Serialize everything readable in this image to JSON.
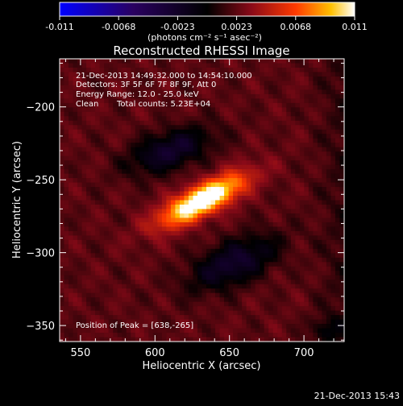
{
  "title": "Reconstructed RHESSI Image",
  "colorbar": {
    "ticks": [
      "-0.011",
      "-0.0068",
      "-0.0023",
      "0.0023",
      "0.0068",
      "0.011"
    ],
    "units": "(photons cm⁻² s⁻¹ asec⁻²)",
    "range": [
      -0.011,
      0.011
    ]
  },
  "info": {
    "time_range": "21-Dec-2013 14:49:32.000 to 14:54:10.000",
    "detectors": "Detectors: 3F 5F 6F 7F 8F 9F, Att 0",
    "energy": "Energy Range: 12.0 - 25.0 keV",
    "method": "Clean",
    "counts": "Total counts: 5.23E+04",
    "peak": "Position of Peak = [638,-265]"
  },
  "timestamp": "21-Dec-2013 15:43",
  "chart_data": {
    "type": "heatmap",
    "title": "Reconstructed RHESSI Image",
    "xlabel": "Heliocentric X (arcsec)",
    "ylabel": "Heliocentric Y (arcsec)",
    "xlim": [
      536,
      727
    ],
    "ylim": [
      -361,
      -167
    ],
    "x_ticks": [
      550,
      600,
      650,
      700
    ],
    "y_ticks": [
      -200,
      -250,
      -300,
      -350
    ],
    "x_tick_labels": [
      "550",
      "600",
      "650",
      "700"
    ],
    "y_tick_labels": [
      "−200",
      "−250",
      "−300",
      "−350"
    ],
    "colormap": "blue-black-red-yellow-white",
    "peak": [
      638,
      -265
    ],
    "sources": [
      {
        "kind": "positive",
        "center": [
          632,
          -264
        ],
        "sx": 22,
        "sy": 7,
        "angle_deg": 28,
        "amp": 0.011
      },
      {
        "kind": "negative",
        "center": [
          610,
          -230
        ],
        "sx": 20,
        "sy": 9,
        "angle_deg": 20,
        "amp": -0.0045
      },
      {
        "kind": "negative",
        "center": [
          653,
          -307
        ],
        "sx": 22,
        "sy": 10,
        "angle_deg": 25,
        "amp": -0.0045
      },
      {
        "kind": "negative",
        "center": [
          715,
          -353
        ],
        "sx": 8,
        "sy": 6,
        "angle_deg": 0,
        "amp": -0.002
      }
    ],
    "background": 0.0021
  }
}
